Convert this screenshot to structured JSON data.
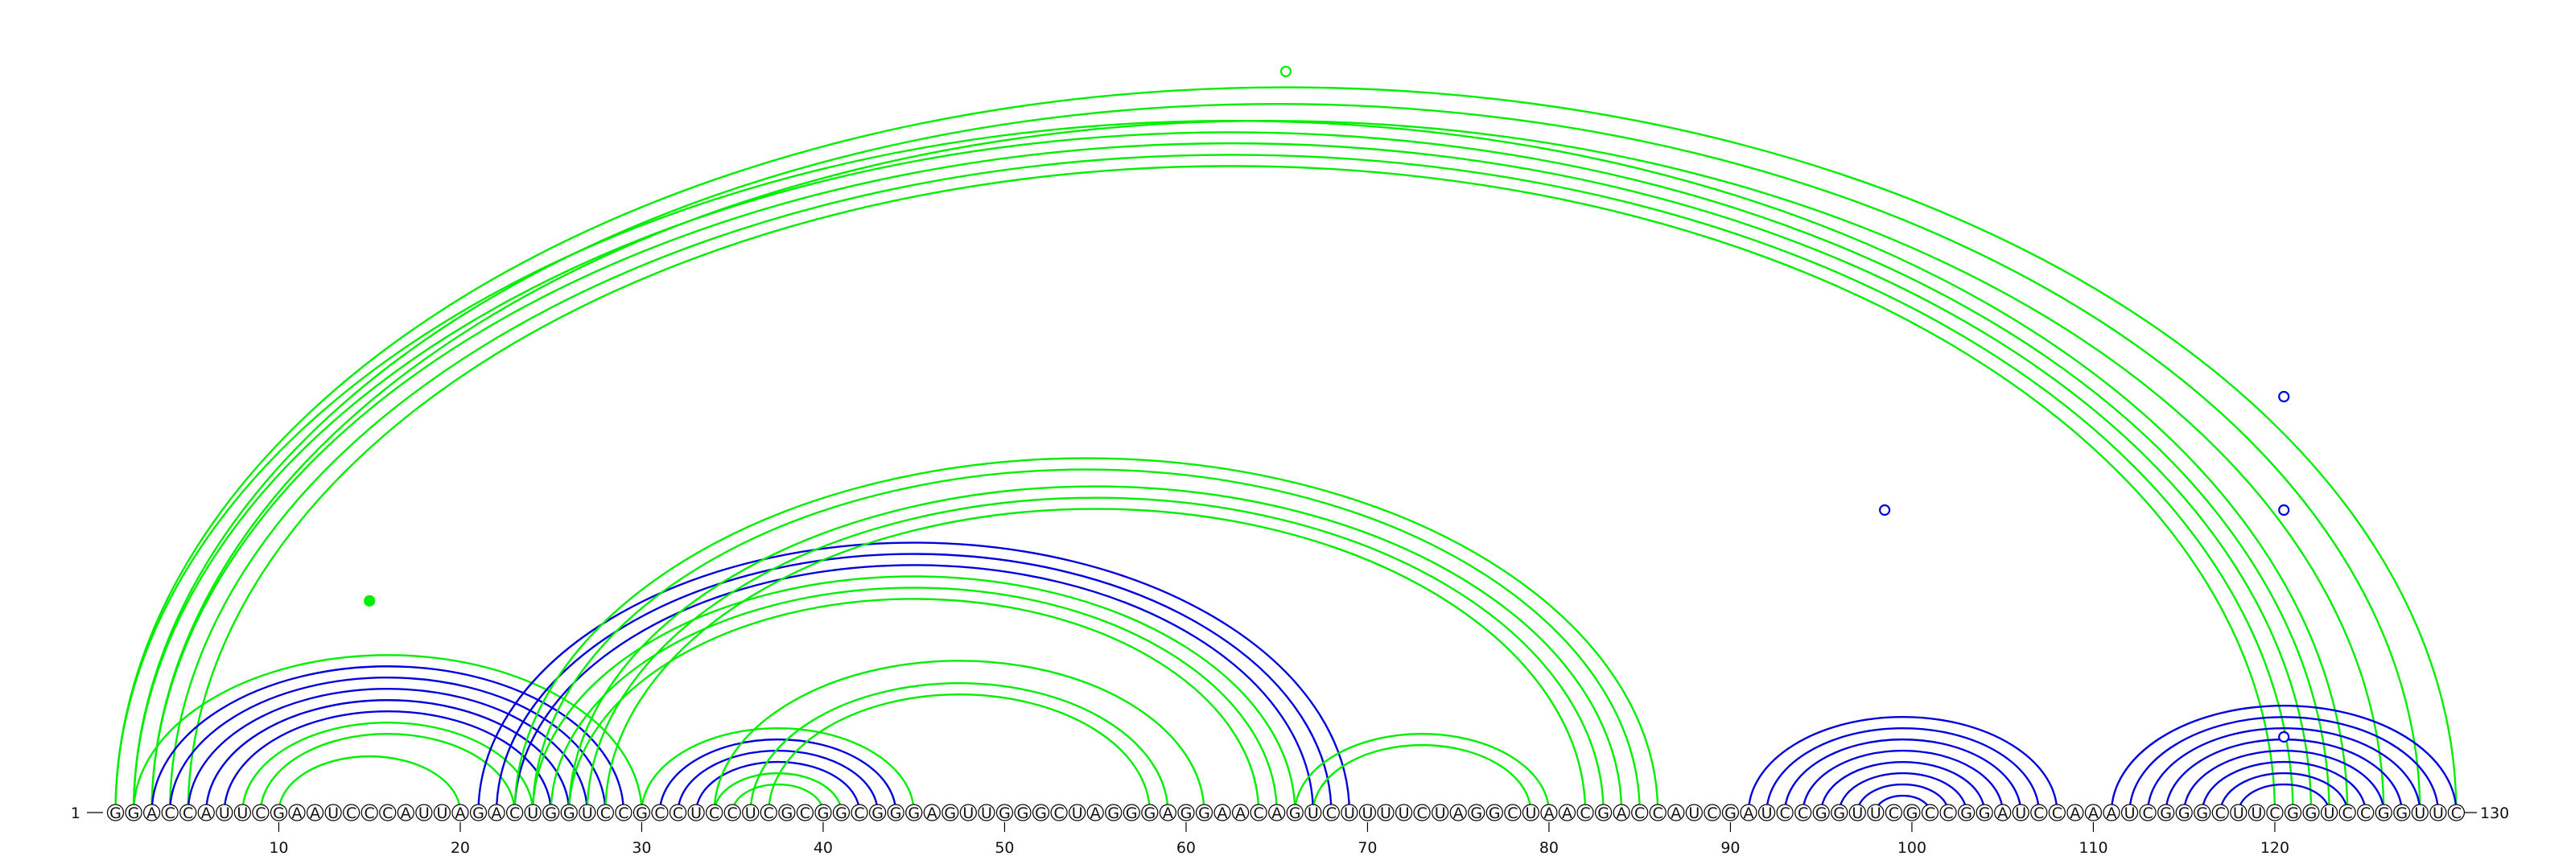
{
  "sequence": "GGACCAUUCGAAUCCCAUUAGACUGGUCCGCCUCCUCGCGGCGGGAGUUGGGCUAGGGAGGAACAGUCUUUUCUAGGCUAACGACCAUCGAUCCGGUUCGCCGGAUCCAAAUCGGGCUUCGGUCCGGUUC",
  "start_label": "1",
  "end_label": "130",
  "ticks": [
    "10",
    "20",
    "30",
    "40",
    "50",
    "60",
    "70",
    "80",
    "90",
    "100",
    "110",
    "120"
  ],
  "colors": {
    "green": "#00ee00",
    "blue": "#0000dd"
  },
  "arcs": [
    {
      "i": 1,
      "j": 124,
      "color": "green"
    },
    {
      "i": 2,
      "j": 123,
      "color": "green"
    },
    {
      "i": 3,
      "j": 122,
      "color": "green"
    },
    {
      "i": 4,
      "j": 121,
      "color": "green"
    },
    {
      "i": 5,
      "j": 120,
      "color": "green"
    },
    {
      "i": 1,
      "j": 130,
      "color": "green"
    },
    {
      "i": 2,
      "j": 128,
      "color": "green"
    },
    {
      "i": 3,
      "j": 126,
      "color": "green"
    },
    {
      "i": 2,
      "j": 30,
      "color": "green"
    },
    {
      "i": 3,
      "j": 29,
      "color": "blue"
    },
    {
      "i": 4,
      "j": 28,
      "color": "blue"
    },
    {
      "i": 5,
      "j": 27,
      "color": "blue"
    },
    {
      "i": 6,
      "j": 26,
      "color": "blue"
    },
    {
      "i": 7,
      "j": 25,
      "color": "blue"
    },
    {
      "i": 8,
      "j": 24,
      "color": "green"
    },
    {
      "i": 9,
      "j": 23,
      "color": "green"
    },
    {
      "i": 10,
      "j": 20,
      "color": "green"
    },
    {
      "i": 21,
      "j": 69,
      "color": "blue"
    },
    {
      "i": 22,
      "j": 68,
      "color": "blue"
    },
    {
      "i": 23,
      "j": 67,
      "color": "blue"
    },
    {
      "i": 24,
      "j": 66,
      "color": "green"
    },
    {
      "i": 25,
      "j": 65,
      "color": "green"
    },
    {
      "i": 26,
      "j": 64,
      "color": "green"
    },
    {
      "i": 23,
      "j": 86,
      "color": "green"
    },
    {
      "i": 24,
      "j": 85,
      "color": "green"
    },
    {
      "i": 26,
      "j": 84,
      "color": "green"
    },
    {
      "i": 27,
      "j": 83,
      "color": "green"
    },
    {
      "i": 28,
      "j": 82,
      "color": "green"
    },
    {
      "i": 30,
      "j": 45,
      "color": "green"
    },
    {
      "i": 31,
      "j": 44,
      "color": "blue"
    },
    {
      "i": 32,
      "j": 43,
      "color": "blue"
    },
    {
      "i": 33,
      "j": 42,
      "color": "blue"
    },
    {
      "i": 34,
      "j": 41,
      "color": "green"
    },
    {
      "i": 35,
      "j": 40,
      "color": "green"
    },
    {
      "i": 34,
      "j": 61,
      "color": "green"
    },
    {
      "i": 36,
      "j": 59,
      "color": "green"
    },
    {
      "i": 37,
      "j": 58,
      "color": "green"
    },
    {
      "i": 66,
      "j": 80,
      "color": "green"
    },
    {
      "i": 67,
      "j": 79,
      "color": "green"
    },
    {
      "i": 91,
      "j": 108,
      "color": "blue"
    },
    {
      "i": 92,
      "j": 107,
      "color": "blue"
    },
    {
      "i": 93,
      "j": 106,
      "color": "blue"
    },
    {
      "i": 94,
      "j": 105,
      "color": "blue"
    },
    {
      "i": 95,
      "j": 104,
      "color": "blue"
    },
    {
      "i": 96,
      "j": 103,
      "color": "blue"
    },
    {
      "i": 97,
      "j": 102,
      "color": "blue"
    },
    {
      "i": 98,
      "j": 101,
      "color": "blue"
    },
    {
      "i": 111,
      "j": 130,
      "color": "blue"
    },
    {
      "i": 112,
      "j": 129,
      "color": "blue"
    },
    {
      "i": 113,
      "j": 128,
      "color": "blue"
    },
    {
      "i": 114,
      "j": 127,
      "color": "blue"
    },
    {
      "i": 115,
      "j": 126,
      "color": "blue"
    },
    {
      "i": 116,
      "j": 125,
      "color": "blue"
    },
    {
      "i": 117,
      "j": 124,
      "color": "blue"
    },
    {
      "i": 118,
      "j": 123,
      "color": "blue"
    }
  ],
  "markers": [
    {
      "pos": 65.5,
      "level": 0.98,
      "color": "green",
      "filled": false
    },
    {
      "pos": 15,
      "level": 0.28,
      "color": "green",
      "filled": true
    },
    {
      "pos": 98.5,
      "level": 0.4,
      "color": "blue",
      "filled": false
    },
    {
      "pos": 120.5,
      "level": 0.55,
      "color": "blue",
      "filled": false
    },
    {
      "pos": 120.5,
      "level": 0.4,
      "color": "blue",
      "filled": false
    },
    {
      "pos": 120.5,
      "level": 0.1,
      "color": "blue",
      "filled": false
    }
  ]
}
